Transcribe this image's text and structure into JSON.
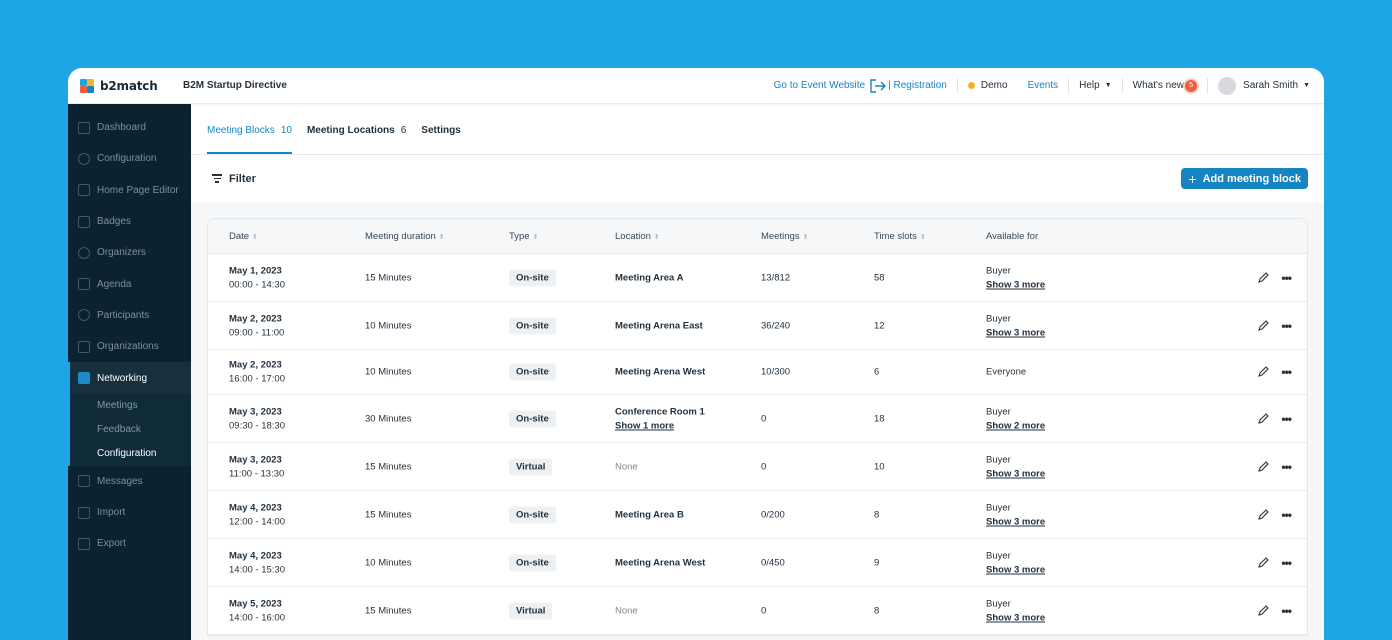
{
  "topbar": {
    "logo_text": "b2match",
    "event_name": "B2M Startup Directive",
    "go_to_website": "Go to Event Website",
    "registration": "| Registration",
    "demo": "Demo",
    "events": "Events",
    "help": "Help",
    "whats_new": "What's new",
    "whats_new_count": "5",
    "user_name": "Sarah Smith",
    "colors": {
      "brand_blue": "#1485c2",
      "demo_dot": "#f2b521",
      "notification": "#ef5d3b"
    }
  },
  "sidebar": {
    "items": [
      {
        "label": "Dashboard",
        "icon": "chart-icon"
      },
      {
        "label": "Configuration",
        "icon": "gear-icon"
      },
      {
        "label": "Home Page Editor",
        "icon": "document-icon"
      },
      {
        "label": "Badges",
        "icon": "login-icon"
      },
      {
        "label": "Organizers",
        "icon": "users-icon"
      },
      {
        "label": "Agenda",
        "icon": "calendar-icon"
      },
      {
        "label": "Participants",
        "icon": "users-icon"
      },
      {
        "label": "Organizations",
        "icon": "building-icon"
      },
      {
        "label": "Networking",
        "icon": "handshake-icon"
      }
    ],
    "networking_sub": [
      "Meetings",
      "Feedback",
      "Configuration"
    ],
    "items_after": [
      {
        "label": "Messages",
        "icon": "envelope-icon"
      },
      {
        "label": "Import",
        "icon": "import-icon"
      },
      {
        "label": "Export",
        "icon": "export-icon"
      }
    ]
  },
  "tabs": [
    {
      "label": "Meeting Blocks",
      "count": "10"
    },
    {
      "label": "Meeting Locations",
      "count": "6"
    },
    {
      "label": "Settings",
      "count": ""
    }
  ],
  "toolbar": {
    "filter": "Filter",
    "add_button": "Add meeting block"
  },
  "table": {
    "headers": [
      "Date",
      "Meeting duration",
      "Type",
      "Location",
      "Meetings",
      "Time slots",
      "Available for"
    ],
    "rows": [
      {
        "date": "May 1, 2023",
        "time": "00:00 - 14:30",
        "duration": "15 Minutes",
        "type": "On-site",
        "location": "Meeting Area A",
        "location_more": "",
        "meetings": "13/812",
        "slots": "58",
        "available": "Buyer",
        "available_more": "Show 3 more"
      },
      {
        "date": "May 2, 2023",
        "time": "09:00 - 11:00",
        "duration": "10 Minutes",
        "type": "On-site",
        "location": "Meeting Arena East",
        "location_more": "",
        "meetings": "36/240",
        "slots": "12",
        "available": "Buyer",
        "available_more": "Show 3 more"
      },
      {
        "date": "May 2, 2023",
        "time": "16:00 - 17:00",
        "duration": "10 Minutes",
        "type": "On-site",
        "location": "Meeting Arena West",
        "location_more": "",
        "meetings": "10/300",
        "slots": "6",
        "available": "Everyone",
        "available_more": ""
      },
      {
        "date": "May 3, 2023",
        "time": "09:30 - 18:30",
        "duration": "30 Minutes",
        "type": "On-site",
        "location": "Conference Room 1",
        "location_more": "Show 1 more",
        "meetings": "0",
        "slots": "18",
        "available": "Buyer",
        "available_more": "Show 2 more"
      },
      {
        "date": "May 3, 2023",
        "time": "11:00 - 13:30",
        "duration": "15 Minutes",
        "type": "Virtual",
        "location": "None",
        "location_more": "",
        "meetings": "0",
        "slots": "10",
        "available": "Buyer",
        "available_more": "Show 3 more"
      },
      {
        "date": "May 4, 2023",
        "time": "12:00 - 14:00",
        "duration": "15 Minutes",
        "type": "On-site",
        "location": "Meeting Area B",
        "location_more": "",
        "meetings": "0/200",
        "slots": "8",
        "available": "Buyer",
        "available_more": "Show 3 more"
      },
      {
        "date": "May 4, 2023",
        "time": "14:00 - 15:30",
        "duration": "10 Minutes",
        "type": "On-site",
        "location": "Meeting Arena West",
        "location_more": "",
        "meetings": "0/450",
        "slots": "9",
        "available": "Buyer",
        "available_more": "Show 3 more"
      },
      {
        "date": "May 5, 2023",
        "time": "14:00 - 16:00",
        "duration": "15 Minutes",
        "type": "Virtual",
        "location": "None",
        "location_more": "",
        "meetings": "0",
        "slots": "8",
        "available": "Buyer",
        "available_more": "Show 3 more"
      }
    ]
  }
}
